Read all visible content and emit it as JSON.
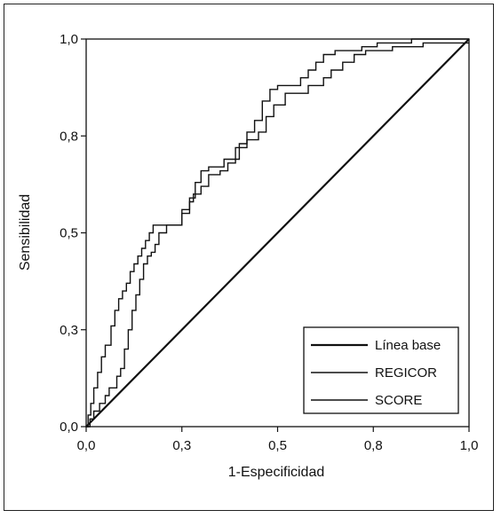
{
  "chart_data": {
    "type": "line",
    "title": "",
    "xlabel": "1-Especificidad",
    "ylabel": "Sensibilidad",
    "xlim": [
      0,
      1
    ],
    "ylim": [
      0,
      1
    ],
    "grid": false,
    "legend_position": "bottom-right",
    "x_ticks": [
      {
        "value": 0.0,
        "label": "0,0"
      },
      {
        "value": 0.25,
        "label": "0,3"
      },
      {
        "value": 0.5,
        "label": "0,5"
      },
      {
        "value": 0.75,
        "label": "0,8"
      },
      {
        "value": 1.0,
        "label": "1,0"
      }
    ],
    "y_ticks": [
      {
        "value": 0.0,
        "label": "0,0"
      },
      {
        "value": 0.25,
        "label": "0,3"
      },
      {
        "value": 0.5,
        "label": "0,5"
      },
      {
        "value": 0.75,
        "label": "0,8"
      },
      {
        "value": 1.0,
        "label": "1,0"
      }
    ],
    "series": [
      {
        "name": "Línea base",
        "width": 2.2,
        "x": [
          0,
          1
        ],
        "y": [
          0,
          1
        ]
      },
      {
        "name": "REGICOR",
        "width": 1.4,
        "x": [
          0,
          0.005,
          0.005,
          0.012,
          0.012,
          0.02,
          0.02,
          0.03,
          0.03,
          0.04,
          0.04,
          0.05,
          0.05,
          0.065,
          0.065,
          0.075,
          0.075,
          0.085,
          0.085,
          0.095,
          0.095,
          0.105,
          0.105,
          0.115,
          0.115,
          0.125,
          0.125,
          0.135,
          0.135,
          0.145,
          0.145,
          0.155,
          0.155,
          0.165,
          0.165,
          0.175,
          0.175,
          0.19,
          0.19,
          0.25,
          0.25,
          0.27,
          0.27,
          0.285,
          0.285,
          0.3,
          0.3,
          0.32,
          0.32,
          0.34,
          0.34,
          0.36,
          0.36,
          0.38,
          0.38,
          0.4,
          0.4,
          0.42,
          0.42,
          0.44,
          0.44,
          0.46,
          0.46,
          0.48,
          0.48,
          0.5,
          0.5,
          0.53,
          0.53,
          0.56,
          0.56,
          0.58,
          0.58,
          0.6,
          0.6,
          0.62,
          0.62,
          0.65,
          0.65,
          0.68,
          0.68,
          0.72,
          0.72,
          0.76,
          0.76,
          0.8,
          0.8,
          0.85,
          0.85,
          0.88,
          0.88,
          0.92,
          0.92,
          1.0
        ],
        "y": [
          0,
          0,
          0.03,
          0.03,
          0.06,
          0.06,
          0.1,
          0.1,
          0.14,
          0.14,
          0.18,
          0.18,
          0.21,
          0.21,
          0.26,
          0.26,
          0.3,
          0.3,
          0.33,
          0.33,
          0.35,
          0.35,
          0.37,
          0.37,
          0.4,
          0.4,
          0.42,
          0.42,
          0.44,
          0.44,
          0.46,
          0.46,
          0.48,
          0.48,
          0.5,
          0.5,
          0.52,
          0.52,
          0.52,
          0.52,
          0.55,
          0.55,
          0.59,
          0.59,
          0.63,
          0.63,
          0.66,
          0.66,
          0.67,
          0.67,
          0.67,
          0.67,
          0.69,
          0.69,
          0.69,
          0.69,
          0.73,
          0.73,
          0.76,
          0.76,
          0.79,
          0.79,
          0.84,
          0.84,
          0.87,
          0.87,
          0.88,
          0.88,
          0.88,
          0.88,
          0.9,
          0.9,
          0.92,
          0.92,
          0.94,
          0.94,
          0.96,
          0.96,
          0.97,
          0.97,
          0.97,
          0.97,
          0.98,
          0.98,
          0.99,
          0.99,
          0.99,
          0.99,
          1.0,
          1.0,
          1.0,
          1.0,
          1.0,
          1.0
        ]
      },
      {
        "name": "SCORE",
        "width": 1.4,
        "x": [
          0,
          0.01,
          0.01,
          0.02,
          0.02,
          0.035,
          0.035,
          0.05,
          0.05,
          0.06,
          0.06,
          0.08,
          0.08,
          0.09,
          0.09,
          0.1,
          0.1,
          0.11,
          0.11,
          0.12,
          0.12,
          0.13,
          0.13,
          0.14,
          0.14,
          0.15,
          0.15,
          0.16,
          0.16,
          0.17,
          0.17,
          0.18,
          0.18,
          0.19,
          0.19,
          0.2,
          0.2,
          0.21,
          0.21,
          0.25,
          0.25,
          0.27,
          0.27,
          0.28,
          0.28,
          0.3,
          0.3,
          0.32,
          0.32,
          0.35,
          0.35,
          0.37,
          0.37,
          0.39,
          0.39,
          0.42,
          0.42,
          0.45,
          0.45,
          0.47,
          0.47,
          0.49,
          0.49,
          0.52,
          0.52,
          0.58,
          0.58,
          0.62,
          0.62,
          0.64,
          0.64,
          0.67,
          0.67,
          0.7,
          0.7,
          0.73,
          0.73,
          0.76,
          0.76,
          0.8,
          0.8,
          0.86,
          0.86,
          0.88,
          0.88,
          0.9,
          0.9,
          1.0
        ],
        "y": [
          0,
          0,
          0.02,
          0.02,
          0.04,
          0.04,
          0.06,
          0.06,
          0.08,
          0.08,
          0.1,
          0.1,
          0.13,
          0.13,
          0.15,
          0.15,
          0.2,
          0.2,
          0.25,
          0.25,
          0.3,
          0.3,
          0.34,
          0.34,
          0.38,
          0.38,
          0.42,
          0.42,
          0.44,
          0.44,
          0.45,
          0.45,
          0.47,
          0.47,
          0.5,
          0.5,
          0.5,
          0.5,
          0.52,
          0.52,
          0.56,
          0.56,
          0.58,
          0.58,
          0.6,
          0.6,
          0.62,
          0.62,
          0.65,
          0.65,
          0.66,
          0.66,
          0.68,
          0.68,
          0.72,
          0.72,
          0.74,
          0.74,
          0.76,
          0.76,
          0.8,
          0.8,
          0.83,
          0.83,
          0.86,
          0.86,
          0.88,
          0.88,
          0.9,
          0.9,
          0.92,
          0.92,
          0.94,
          0.94,
          0.96,
          0.96,
          0.97,
          0.97,
          0.97,
          0.97,
          0.98,
          0.98,
          0.98,
          0.98,
          0.99,
          0.99,
          0.99,
          0.99
        ]
      }
    ]
  }
}
